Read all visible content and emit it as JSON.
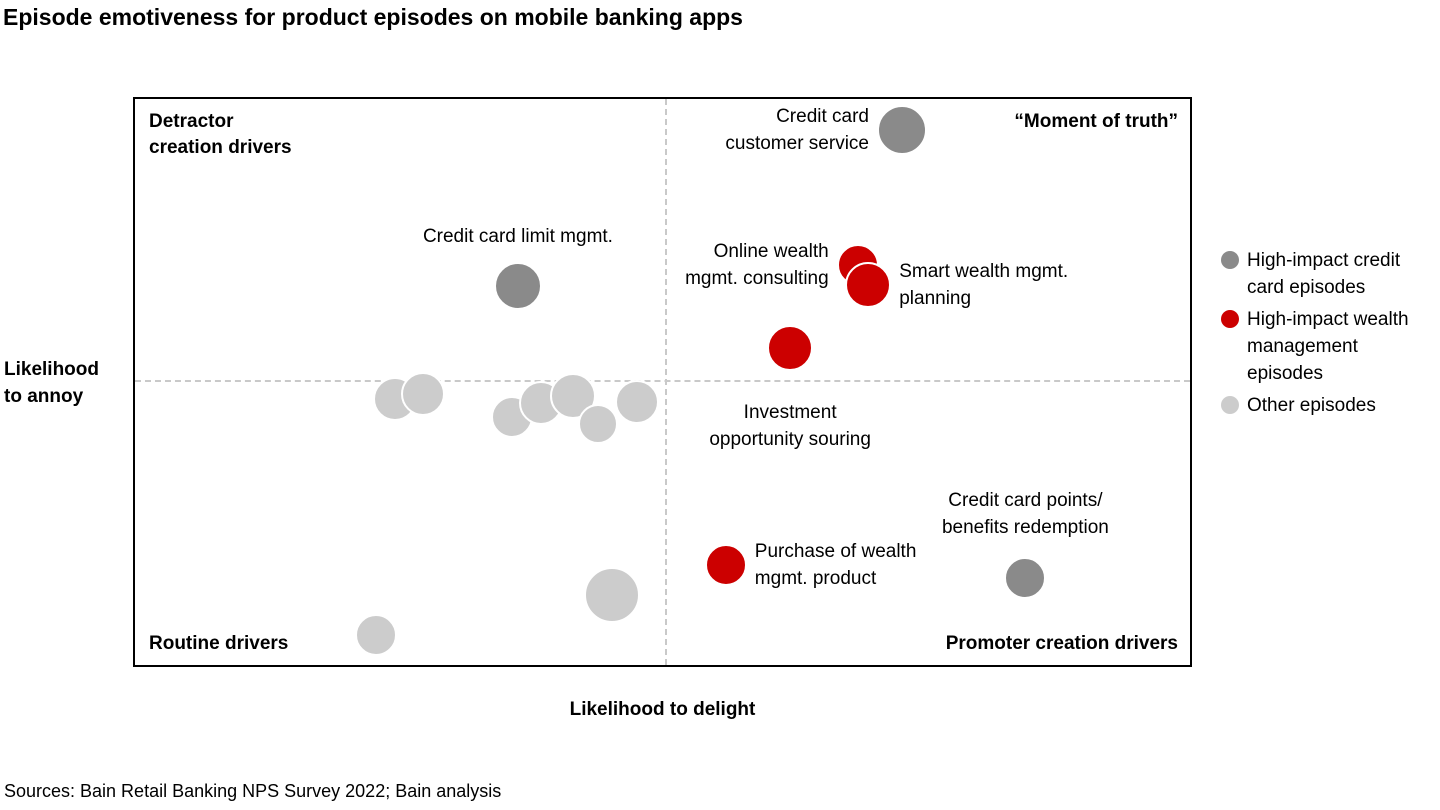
{
  "page": {
    "source_note": "Sources: Bain Retail Banking NPS Survey 2022; Bain analysis"
  },
  "chart_data": {
    "type": "scatter",
    "title": "Episode emotiveness for product episodes on mobile banking apps",
    "xlabel": "Likelihood to delight",
    "ylabel": "Likelihood to annoy",
    "ylabel_display": "Likelihood\nto annoy",
    "xlim": [
      0,
      100
    ],
    "ylim": [
      0,
      100
    ],
    "grid": false,
    "legend_position": "right",
    "quadrant_lines": {
      "x_pct": 50.2,
      "y_pct": 49.6
    },
    "quadrants": {
      "top_left": "Detractor\ncreation drivers",
      "top_right": "“Moment of truth”",
      "bottom_left": "Routine drivers",
      "bottom_right": "Promoter creation drivers"
    },
    "series": [
      {
        "name": "High-impact credit card episodes",
        "legend_label": "High-impact credit\ncard episodes",
        "color": "#8a8a8a",
        "points": [
          {
            "label": "Credit card customer service",
            "label_display": "Credit card\ncustomer service",
            "x": 72.7,
            "y": 94.6,
            "r": 25,
            "label_side": "left"
          },
          {
            "label": "Credit card limit mgmt.",
            "label_display": "Credit card limit mgmt.",
            "x": 36.3,
            "y": 67.0,
            "r": 24,
            "label_side": "above",
            "label_gap": 12
          },
          {
            "label": "Credit card points/benefits redemption",
            "label_display": "Credit card points/\nbenefits redemption",
            "x": 84.4,
            "y": 15.3,
            "r": 21,
            "label_side": "above",
            "label_gap": 16
          }
        ]
      },
      {
        "name": "High-impact wealth management episodes",
        "legend_label": "High-impact wealth\nmanagement\nepisodes",
        "color": "#cc0000",
        "points": [
          {
            "label": "Online wealth mgmt. consulting",
            "label_display": "Online wealth\nmgmt. consulting",
            "x": 68.5,
            "y": 70.7,
            "r": 21,
            "label_side": "left"
          },
          {
            "label": "Smart wealth mgmt. planning",
            "label_display": "Smart wealth mgmt.\nplanning",
            "x": 69.5,
            "y": 67.2,
            "r": 23,
            "label_side": "right"
          },
          {
            "label": "Investment opportunity souring",
            "label_display": "Investment\nopportunity souring",
            "x": 62.1,
            "y": 56.0,
            "r": 23,
            "label_side": "below",
            "label_gap": 28
          },
          {
            "label": "Purchase of wealth mgmt. product",
            "label_display": "Purchase of wealth\nmgmt. product",
            "x": 56.0,
            "y": 17.7,
            "r": 21,
            "label_side": "right"
          }
        ]
      },
      {
        "name": "Other episodes",
        "legend_label": "Other episodes",
        "color": "#cccccc",
        "points": [
          {
            "x": 24.6,
            "y": 47.0,
            "r": 22
          },
          {
            "x": 27.3,
            "y": 47.9,
            "r": 22
          },
          {
            "x": 35.7,
            "y": 43.9,
            "r": 21
          },
          {
            "x": 38.5,
            "y": 46.3,
            "r": 22
          },
          {
            "x": 41.5,
            "y": 47.5,
            "r": 23
          },
          {
            "x": 43.9,
            "y": 42.6,
            "r": 20
          },
          {
            "x": 47.6,
            "y": 46.5,
            "r": 22
          },
          {
            "x": 45.2,
            "y": 12.3,
            "r": 28
          },
          {
            "x": 22.8,
            "y": 5.3,
            "r": 21
          }
        ]
      }
    ]
  }
}
